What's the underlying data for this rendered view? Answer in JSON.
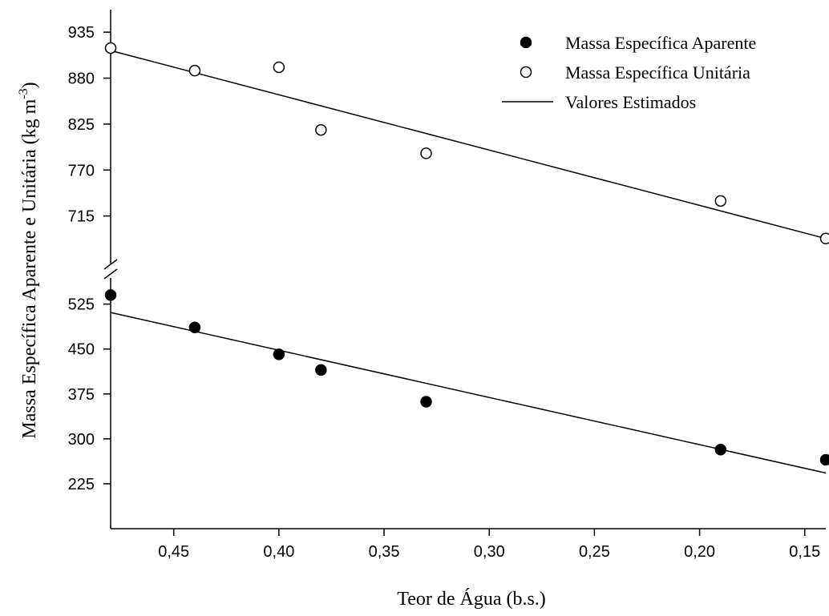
{
  "chart_data": {
    "type": "scatter",
    "xlabel": "Teor de Água (b.s.)",
    "ylabel": "Massa Específica Aparente e Unitária (kg m",
    "ylabel_sup": "-3",
    "ylabel_close": ")",
    "x_reversed": true,
    "xlim": [
      0.48,
      0.14
    ],
    "x_ticks": [
      0.45,
      0.4,
      0.35,
      0.3,
      0.25,
      0.2,
      0.15
    ],
    "x_tick_labels": [
      "0,45",
      "0,40",
      "0,35",
      "0,30",
      "0,25",
      "0,20",
      "0,15"
    ],
    "y_axis_break": true,
    "upper_panel": {
      "ylim": [
        660,
        962
      ],
      "y_ticks": [
        935,
        880,
        825,
        770,
        715
      ],
      "y_tick_labels": [
        "935",
        "880",
        "825",
        "770",
        "715"
      ]
    },
    "lower_panel": {
      "ylim": [
        150,
        578
      ],
      "y_ticks": [
        525,
        450,
        375,
        300,
        225
      ],
      "y_tick_labels": [
        "525",
        "450",
        "375",
        "300",
        "225"
      ]
    },
    "series": [
      {
        "name": "Massa Específica Aparente",
        "marker": "filled-circle",
        "panel": "lower",
        "x": [
          0.48,
          0.44,
          0.4,
          0.38,
          0.33,
          0.19,
          0.14
        ],
        "y": [
          540,
          486,
          441,
          415,
          362,
          282,
          265
        ]
      },
      {
        "name": "Massa Específica Unitária",
        "marker": "open-circle",
        "panel": "upper",
        "x": [
          0.48,
          0.44,
          0.4,
          0.38,
          0.33,
          0.19,
          0.14
        ],
        "y": [
          916,
          889,
          893,
          818,
          790,
          733,
          688
        ]
      }
    ],
    "fits": [
      {
        "panel": "upper",
        "x": [
          0.48,
          0.14
        ],
        "y": [
          913,
          688
        ]
      },
      {
        "panel": "lower",
        "x": [
          0.48,
          0.14
        ],
        "y": [
          511,
          243
        ]
      }
    ],
    "legend": {
      "placement": "top-right",
      "entries": [
        {
          "label": "Massa Específica Aparente",
          "symbol": "filled-circle"
        },
        {
          "label": "Massa Específica Unitária",
          "symbol": "open-circle"
        },
        {
          "label": "Valores Estimados",
          "symbol": "line"
        }
      ]
    },
    "grid": false
  }
}
